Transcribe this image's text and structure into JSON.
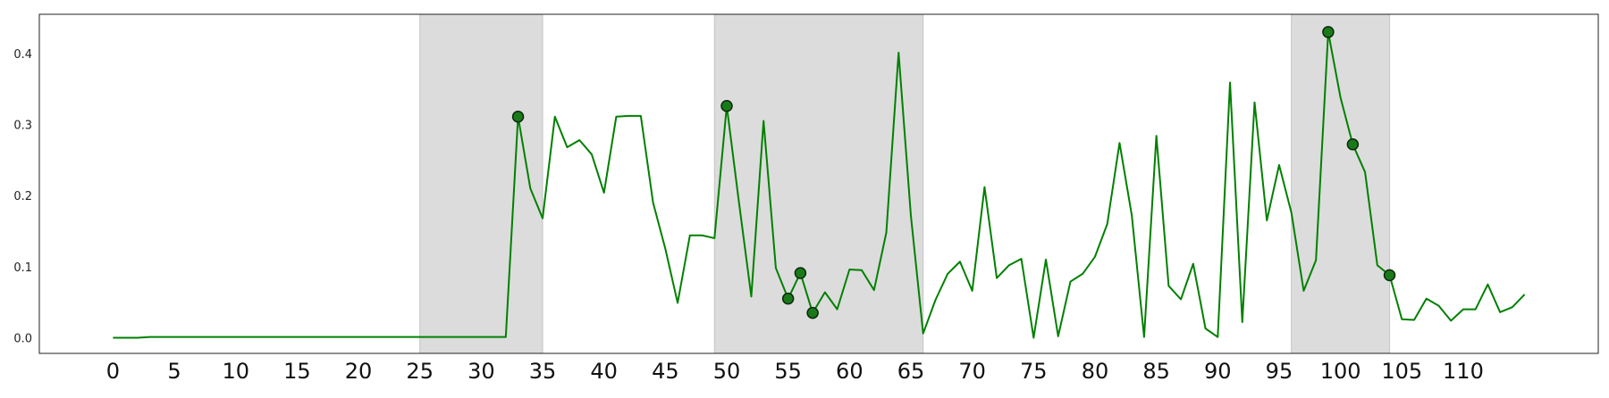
{
  "chart_data": {
    "type": "line",
    "title": "",
    "xlabel": "",
    "ylabel": "",
    "xlim": [
      -6,
      121
    ],
    "ylim": [
      -0.022,
      0.455
    ],
    "grid": false,
    "legend": "none",
    "x_ticks": [
      0,
      5,
      10,
      15,
      20,
      25,
      30,
      35,
      40,
      45,
      50,
      55,
      60,
      65,
      70,
      75,
      80,
      85,
      90,
      95,
      100,
      105,
      110
    ],
    "y_ticks": [
      "0.0",
      "0.1",
      "0.2",
      "0.3",
      "0.4"
    ],
    "shaded_regions": [
      [
        25,
        35
      ],
      [
        49,
        66
      ],
      [
        96,
        104
      ]
    ],
    "line_color": "#008000",
    "marker_color": "#1a7a1a",
    "shade_color": "#dcdcdc",
    "series": [
      {
        "values": [
          0.0,
          0.0,
          0.0,
          0.001,
          0.001,
          0.001,
          0.001,
          0.001,
          0.001,
          0.001,
          0.001,
          0.001,
          0.001,
          0.001,
          0.001,
          0.001,
          0.001,
          0.001,
          0.001,
          0.001,
          0.001,
          0.001,
          0.001,
          0.001,
          0.001,
          0.001,
          0.001,
          0.001,
          0.001,
          0.001,
          0.001,
          0.001,
          0.001,
          0.311,
          0.21,
          0.168,
          0.311,
          0.268,
          0.278,
          0.258,
          0.204,
          0.311,
          0.312,
          0.312,
          0.19,
          0.125,
          0.049,
          0.144,
          0.144,
          0.14,
          0.326,
          0.19,
          0.058,
          0.305,
          0.098,
          0.055,
          0.091,
          0.035,
          0.064,
          0.04,
          0.096,
          0.095,
          0.067,
          0.148,
          0.401,
          0.172,
          0.006,
          0.053,
          0.09,
          0.107,
          0.066,
          0.212,
          0.084,
          0.102,
          0.111,
          0.0,
          0.11,
          0.002,
          0.079,
          0.09,
          0.114,
          0.16,
          0.274,
          0.172,
          0.001,
          0.284,
          0.073,
          0.054,
          0.104,
          0.013,
          0.001,
          0.359,
          0.022,
          0.331,
          0.165,
          0.243,
          0.176,
          0.066,
          0.109,
          0.43,
          0.338,
          0.272,
          0.233,
          0.102,
          0.088,
          0.026,
          0.025,
          0.055,
          0.045,
          0.024,
          0.04,
          0.04,
          0.075,
          0.036,
          0.043,
          0.061
        ]
      }
    ],
    "highlighted_points": [
      {
        "x": 33,
        "y": 0.311
      },
      {
        "x": 50,
        "y": 0.326
      },
      {
        "x": 55,
        "y": 0.055
      },
      {
        "x": 56,
        "y": 0.091
      },
      {
        "x": 57,
        "y": 0.035
      },
      {
        "x": 99,
        "y": 0.43
      },
      {
        "x": 101,
        "y": 0.272
      },
      {
        "x": 104,
        "y": 0.088
      }
    ]
  }
}
